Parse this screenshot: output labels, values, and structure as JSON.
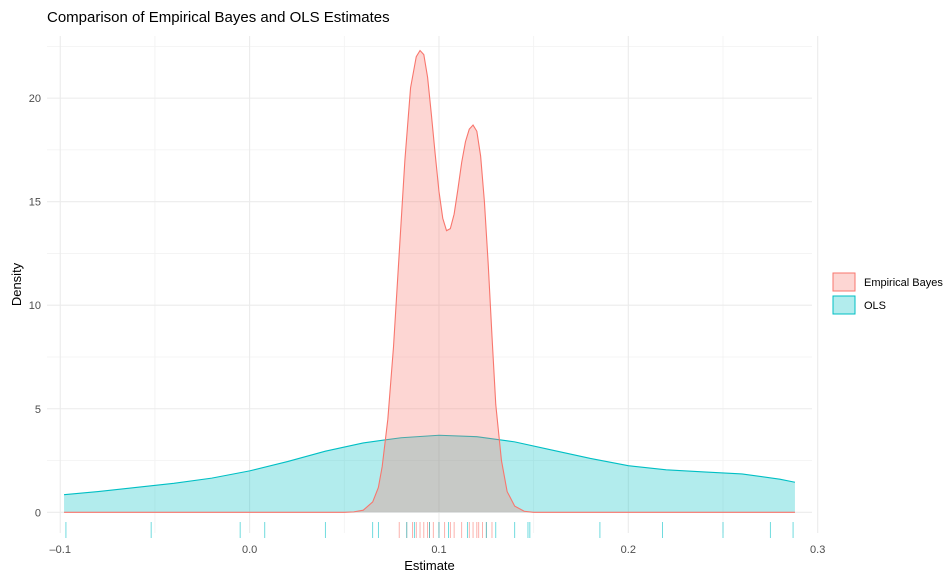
{
  "chart_data": {
    "type": "area",
    "title": "Comparison of Empirical Bayes and OLS Estimates",
    "xlabel": "Estimate",
    "ylabel": "Density",
    "xlim": [
      -0.107,
      0.297
    ],
    "ylim": [
      -1.0,
      23.0
    ],
    "xticks": [
      -0.1,
      0.0,
      0.1,
      0.2,
      0.3
    ],
    "xtick_labels": [
      "-0.1",
      "0.0",
      "0.1",
      "0.2",
      "0.3"
    ],
    "yticks": [
      0,
      5,
      10,
      15,
      20
    ],
    "ytick_labels": [
      "0",
      "5",
      "10",
      "15",
      "20"
    ],
    "grid": true,
    "legend_position": "right",
    "series": [
      {
        "name": "Empirical Bayes",
        "color": "#F8766D",
        "x": [
          -0.098,
          0.05,
          0.055,
          0.06,
          0.065,
          0.068,
          0.07,
          0.073,
          0.076,
          0.079,
          0.082,
          0.085,
          0.088,
          0.09,
          0.092,
          0.094,
          0.096,
          0.098,
          0.1,
          0.102,
          0.104,
          0.106,
          0.108,
          0.11,
          0.112,
          0.114,
          0.116,
          0.118,
          0.12,
          0.122,
          0.124,
          0.126,
          0.128,
          0.13,
          0.133,
          0.136,
          0.14,
          0.145,
          0.15,
          0.288
        ],
        "y": [
          0,
          0,
          0.02,
          0.1,
          0.5,
          1.2,
          2.2,
          4.5,
          8.0,
          12.5,
          17.0,
          20.5,
          22.0,
          22.3,
          22.1,
          21.0,
          19.2,
          17.3,
          15.5,
          14.2,
          13.6,
          13.7,
          14.4,
          15.6,
          16.9,
          17.9,
          18.5,
          18.7,
          18.4,
          17.2,
          15.0,
          12.0,
          8.5,
          5.2,
          2.5,
          1.0,
          0.3,
          0.05,
          0.0,
          0
        ]
      },
      {
        "name": "OLS",
        "color": "#00BFC4",
        "x": [
          -0.098,
          -0.08,
          -0.06,
          -0.04,
          -0.02,
          0.0,
          0.02,
          0.04,
          0.06,
          0.08,
          0.1,
          0.12,
          0.14,
          0.16,
          0.18,
          0.2,
          0.22,
          0.24,
          0.26,
          0.28,
          0.288
        ],
        "y": [
          0.85,
          1.0,
          1.2,
          1.4,
          1.65,
          2.0,
          2.45,
          2.95,
          3.35,
          3.6,
          3.72,
          3.65,
          3.4,
          3.0,
          2.6,
          2.25,
          2.05,
          1.95,
          1.85,
          1.6,
          1.45
        ]
      }
    ],
    "rug": {
      "Empirical Bayes": [
        0.079,
        0.083,
        0.086,
        0.088,
        0.09,
        0.092,
        0.094,
        0.095,
        0.097,
        0.1,
        0.103,
        0.106,
        0.108,
        0.112,
        0.116,
        0.118,
        0.12,
        0.121,
        0.123,
        0.125,
        0.128
      ],
      "OLS": [
        -0.097,
        -0.052,
        -0.005,
        0.008,
        0.04,
        0.065,
        0.068,
        0.083,
        0.087,
        0.095,
        0.1,
        0.105,
        0.115,
        0.125,
        0.13,
        0.14,
        0.147,
        0.148,
        0.185,
        0.218,
        0.25,
        0.275,
        0.287
      ]
    }
  }
}
